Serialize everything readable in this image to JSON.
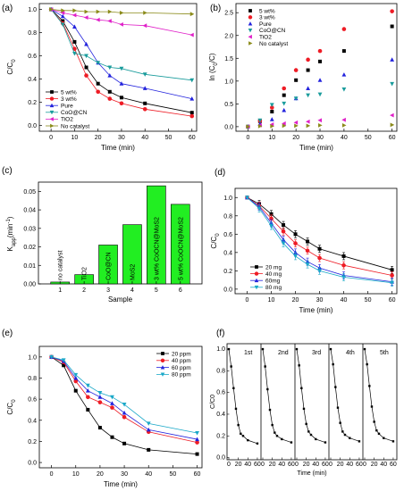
{
  "chart_data": [
    {
      "panel": "(a)",
      "type": "line",
      "xlabel": "Time (min)",
      "ylabel": "C/C0",
      "xlim": [
        -5,
        62
      ],
      "ylim": [
        -0.05,
        1.05
      ],
      "xticks": [
        "0",
        "10",
        "20",
        "30",
        "40",
        "50",
        "60"
      ],
      "yticks": [
        "0.0",
        "0.2",
        "0.4",
        "0.6",
        "0.8",
        "1.0"
      ],
      "x": [
        0,
        5,
        10,
        15,
        20,
        25,
        30,
        40,
        60
      ],
      "legend_position": "bottom-left",
      "series": [
        {
          "name": "5 wt%",
          "marker": "square",
          "color": "#000000",
          "values": [
            1.0,
            0.9,
            0.72,
            0.5,
            0.36,
            0.29,
            0.24,
            0.19,
            0.11
          ]
        },
        {
          "name": "3 wt%",
          "marker": "circle",
          "color": "#ee1c25",
          "values": [
            1.0,
            0.88,
            0.66,
            0.43,
            0.29,
            0.23,
            0.19,
            0.14,
            0.08
          ]
        },
        {
          "name": "Pure",
          "marker": "triangle-up",
          "color": "#2323dd",
          "values": [
            1.0,
            0.94,
            0.85,
            0.7,
            0.54,
            0.43,
            0.36,
            0.32,
            0.23
          ]
        },
        {
          "name": "CoO@CN",
          "marker": "triangle-down",
          "color": "#1a9c9c",
          "values": [
            1.0,
            0.87,
            0.62,
            0.6,
            0.54,
            0.5,
            0.49,
            0.44,
            0.39
          ]
        },
        {
          "name": "TiO2",
          "marker": "triangle-left",
          "color": "#e020c8",
          "values": [
            1.0,
            0.97,
            0.95,
            0.93,
            0.91,
            0.9,
            0.87,
            0.86,
            0.78
          ]
        },
        {
          "name": "No catalyst",
          "marker": "triangle-right",
          "color": "#8b8b1a",
          "values": [
            1.0,
            0.99,
            0.99,
            0.98,
            0.98,
            0.98,
            0.97,
            0.97,
            0.96
          ]
        }
      ]
    },
    {
      "panel": "(b)",
      "type": "scatter",
      "xlabel": "Time (min)",
      "ylabel": "ln (C0/C)",
      "xlim": [
        -5,
        62
      ],
      "ylim": [
        -0.1,
        2.7
      ],
      "xticks": [
        "0",
        "10",
        "20",
        "30",
        "40",
        "50",
        "60"
      ],
      "yticks": [
        "0.0",
        "0.5",
        "1.0",
        "1.5",
        "2.0",
        "2.5"
      ],
      "x": [
        0,
        5,
        10,
        15,
        20,
        25,
        30,
        40,
        60
      ],
      "legend_position": "top-left",
      "series": [
        {
          "name": "5 wt%",
          "marker": "square",
          "color": "#000000",
          "values": [
            0.0,
            0.12,
            0.33,
            0.69,
            1.02,
            1.24,
            1.43,
            1.66,
            2.2
          ]
        },
        {
          "name": "3 wt%",
          "marker": "circle",
          "color": "#ee1c25",
          "values": [
            0.0,
            0.13,
            0.42,
            0.84,
            1.24,
            1.47,
            1.66,
            2.14,
            2.53
          ]
        },
        {
          "name": "Pure",
          "marker": "triangle-up",
          "color": "#2323dd",
          "values": [
            0.0,
            0.06,
            0.16,
            0.36,
            0.62,
            0.84,
            1.02,
            1.14,
            1.47
          ]
        },
        {
          "name": "CoO@CN",
          "marker": "triangle-down",
          "color": "#1a9c9c",
          "values": [
            0.0,
            0.14,
            0.48,
            0.51,
            0.62,
            0.69,
            0.71,
            0.82,
            0.94
          ]
        },
        {
          "name": "TiO2",
          "marker": "triangle-left",
          "color": "#e020c8",
          "values": [
            0.0,
            0.03,
            0.05,
            0.07,
            0.09,
            0.11,
            0.14,
            0.15,
            0.25
          ]
        },
        {
          "name": "No catalyst",
          "marker": "triangle-right",
          "color": "#8b8b1a",
          "values": [
            0.0,
            0.01,
            0.01,
            0.02,
            0.02,
            0.02,
            0.03,
            0.03,
            0.04
          ]
        }
      ]
    },
    {
      "panel": "(c)",
      "type": "bar",
      "xlabel": "Sample",
      "ylabel": "Kapp(min-1)",
      "ylabel_main": "K",
      "ylabel_sub": "app",
      "ylabel_unit": "(min",
      "ylabel_sup": "-1",
      "ylabel_close": ")",
      "ylim": [
        0,
        0.055
      ],
      "yticks": [
        "0.00",
        "0.01",
        "0.02",
        "0.03",
        "0.04",
        "0.05"
      ],
      "categories": [
        "1",
        "2",
        "3",
        "4",
        "5",
        "6"
      ],
      "labels": [
        "no catalyst",
        "TiO2",
        "CoO@CN",
        "MoS2",
        "3 wt% CoOCN@MoS2",
        "5 wt% CoOCN@MoS2"
      ],
      "values": [
        0.001,
        0.005,
        0.021,
        0.032,
        0.053,
        0.043
      ],
      "bar_color": "#22ee22"
    },
    {
      "panel": "(d)",
      "type": "line",
      "xlabel": "Time (min)",
      "ylabel": "C/C0",
      "xlim": [
        -5,
        62
      ],
      "ylim": [
        -0.05,
        1.1
      ],
      "xticks": [
        "0",
        "10",
        "20",
        "30",
        "40",
        "50",
        "60"
      ],
      "yticks": [
        "0.0",
        "0.2",
        "0.4",
        "0.6",
        "0.8",
        "1.0"
      ],
      "x": [
        0,
        5,
        10,
        15,
        20,
        25,
        30,
        40,
        60
      ],
      "legend_position": "bottom-left",
      "series": [
        {
          "name": "20 mg",
          "marker": "square",
          "color": "#000000",
          "values": [
            1.0,
            0.93,
            0.82,
            0.7,
            0.6,
            0.52,
            0.44,
            0.36,
            0.21
          ]
        },
        {
          "name": "40 mg",
          "marker": "circle",
          "color": "#ee1c25",
          "values": [
            1.0,
            0.91,
            0.77,
            0.63,
            0.5,
            0.42,
            0.34,
            0.26,
            0.15
          ]
        },
        {
          "name": "60mg",
          "marker": "triangle-up",
          "color": "#2323dd",
          "values": [
            1.0,
            0.9,
            0.72,
            0.54,
            0.4,
            0.3,
            0.23,
            0.15,
            0.08
          ]
        },
        {
          "name": "80 mg",
          "marker": "triangle-down",
          "color": "#1aa8c8",
          "values": [
            1.0,
            0.88,
            0.69,
            0.5,
            0.36,
            0.27,
            0.2,
            0.13,
            0.07
          ]
        }
      ]
    },
    {
      "panel": "(e)",
      "type": "line",
      "xlabel": "Time (min)",
      "ylabel": "C/C0",
      "xlim": [
        -5,
        62
      ],
      "ylim": [
        -0.05,
        1.1
      ],
      "xticks": [
        "0",
        "10",
        "20",
        "30",
        "40",
        "50",
        "60"
      ],
      "yticks": [
        "0.0",
        "0.2",
        "0.4",
        "0.6",
        "0.8",
        "1.0"
      ],
      "x": [
        0,
        5,
        10,
        15,
        20,
        25,
        30,
        40,
        60
      ],
      "legend_position": "top-right",
      "series": [
        {
          "name": "20 ppm",
          "marker": "square",
          "color": "#000000",
          "values": [
            1.0,
            0.92,
            0.68,
            0.5,
            0.33,
            0.24,
            0.18,
            0.12,
            0.08
          ]
        },
        {
          "name": "40 ppm",
          "marker": "circle",
          "color": "#ee1c25",
          "values": [
            1.0,
            0.95,
            0.77,
            0.62,
            0.57,
            0.52,
            0.43,
            0.29,
            0.19
          ]
        },
        {
          "name": "60 ppm",
          "marker": "triangle-up",
          "color": "#2323dd",
          "values": [
            1.0,
            0.96,
            0.8,
            0.68,
            0.62,
            0.56,
            0.47,
            0.31,
            0.22
          ]
        },
        {
          "name": "80 ppm",
          "marker": "triangle-down",
          "color": "#1aa8c8",
          "values": [
            1.0,
            0.97,
            0.83,
            0.73,
            0.66,
            0.62,
            0.55,
            0.37,
            0.28
          ]
        }
      ]
    },
    {
      "panel": "(f)",
      "type": "line",
      "xlabel": "Time (min)",
      "ylabel": "C/C0",
      "xlim": [
        0,
        62
      ],
      "ylim": [
        -0.02,
        1.05
      ],
      "xticks": [
        "0",
        "20",
        "40",
        "60"
      ],
      "yticks": [
        "0.0",
        "0.2",
        "0.4",
        "0.6",
        "0.8",
        "1.0"
      ],
      "x": [
        0,
        5,
        10,
        15,
        20,
        25,
        30,
        40,
        60
      ],
      "cycles": [
        {
          "name": "1st",
          "values": [
            1.0,
            0.84,
            0.64,
            0.45,
            0.3,
            0.22,
            0.2,
            0.16,
            0.13
          ]
        },
        {
          "name": "2nd",
          "values": [
            1.0,
            0.84,
            0.63,
            0.44,
            0.3,
            0.23,
            0.2,
            0.17,
            0.14
          ]
        },
        {
          "name": "3rd",
          "values": [
            1.0,
            0.85,
            0.64,
            0.45,
            0.31,
            0.24,
            0.21,
            0.17,
            0.14
          ]
        },
        {
          "name": "4th",
          "values": [
            1.0,
            0.86,
            0.65,
            0.46,
            0.32,
            0.24,
            0.21,
            0.18,
            0.15
          ]
        },
        {
          "name": "5th",
          "values": [
            1.0,
            0.86,
            0.66,
            0.47,
            0.33,
            0.25,
            0.22,
            0.18,
            0.15
          ]
        }
      ]
    }
  ]
}
